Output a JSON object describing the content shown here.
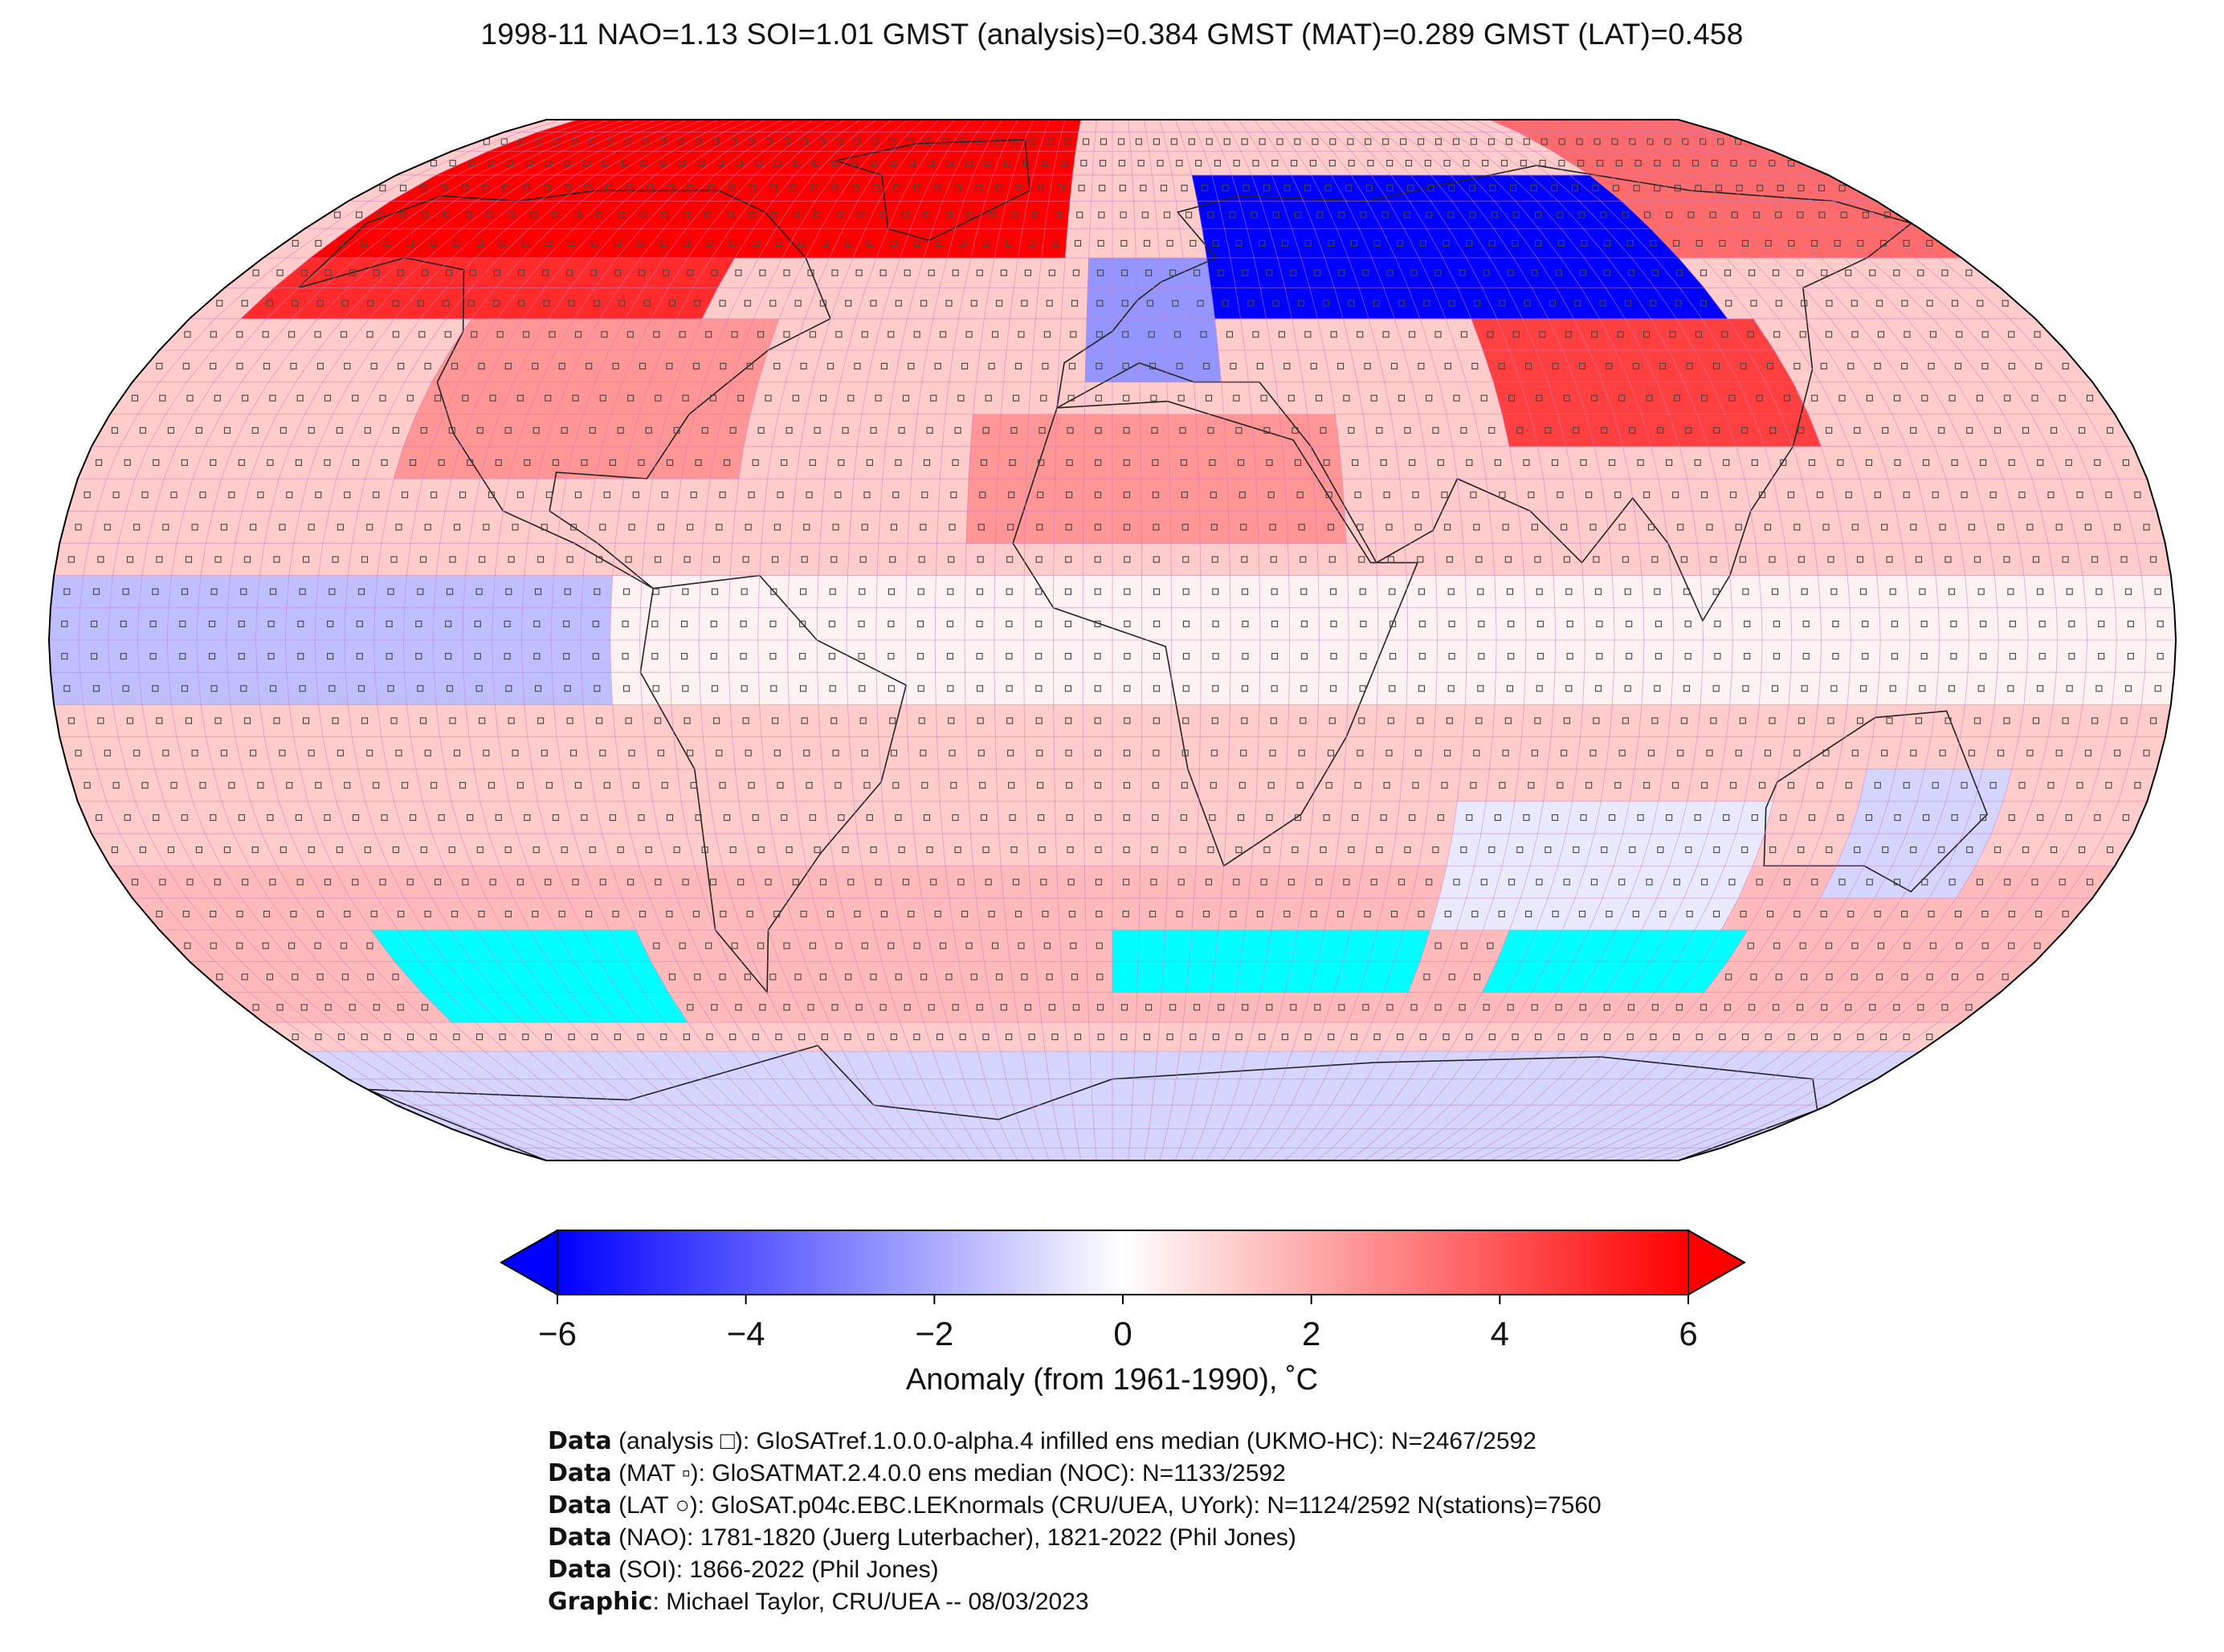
{
  "title": "1998-11 NAO=1.13 SOI=1.01 GMST (analysis)=0.384 GMST (MAT)=0.289 GMST (LAT)=0.458",
  "map": {
    "projection": "robinson",
    "missing_color": "#00ffff",
    "grid_color": "#c77ec4",
    "anomaly_regions": [
      {
        "name": "arctic-north-america-greenland",
        "anomaly": 6
      },
      {
        "name": "north-america",
        "anomaly": 2.5
      },
      {
        "name": "northern-eurasia",
        "anomaly": -6
      },
      {
        "name": "europe",
        "anomaly": -2.5
      },
      {
        "name": "central-asia",
        "anomaly": 4.5
      },
      {
        "name": "north-africa",
        "anomaly": 2.5
      },
      {
        "name": "southern-ocean",
        "anomaly": 1.5
      },
      {
        "name": "equatorial-pacific",
        "anomaly": -1.5
      },
      {
        "name": "australia",
        "anomaly": -1
      },
      {
        "name": "antarctica",
        "anomaly": -1
      }
    ]
  },
  "colorbar": {
    "min": -6,
    "max": 6,
    "ticks": [
      "−6",
      "−4",
      "−2",
      "0",
      "2",
      "4",
      "6"
    ],
    "label": "Anomaly (from 1961-1990), ˚C",
    "colors": [
      "#0000ff",
      "#ffffff",
      "#ff0000"
    ]
  },
  "credits": [
    {
      "key": "Data",
      "text": " (analysis □): GloSATref.1.0.0.0-alpha.4 infilled ens median (UKMO-HC): N=2467/2592"
    },
    {
      "key": "Data",
      "text": " (MAT ▫): GloSATMAT.2.4.0.0 ens median (NOC): N=1133/2592"
    },
    {
      "key": "Data",
      "text": " (LAT ○): GloSAT.p04c.EBC.LEKnormals (CRU/UEA, UYork): N=1124/2592 N(stations)=7560"
    },
    {
      "key": "Data",
      "text": " (NAO): 1781-1820 (Juerg Luterbacher), 1821-2022 (Phil Jones)"
    },
    {
      "key": "Data",
      "text": " (SOI): 1866-2022 (Phil Jones)"
    },
    {
      "key": "Graphic",
      "text": ": Michael Taylor, CRU/UEA -- 08/03/2023"
    }
  ]
}
